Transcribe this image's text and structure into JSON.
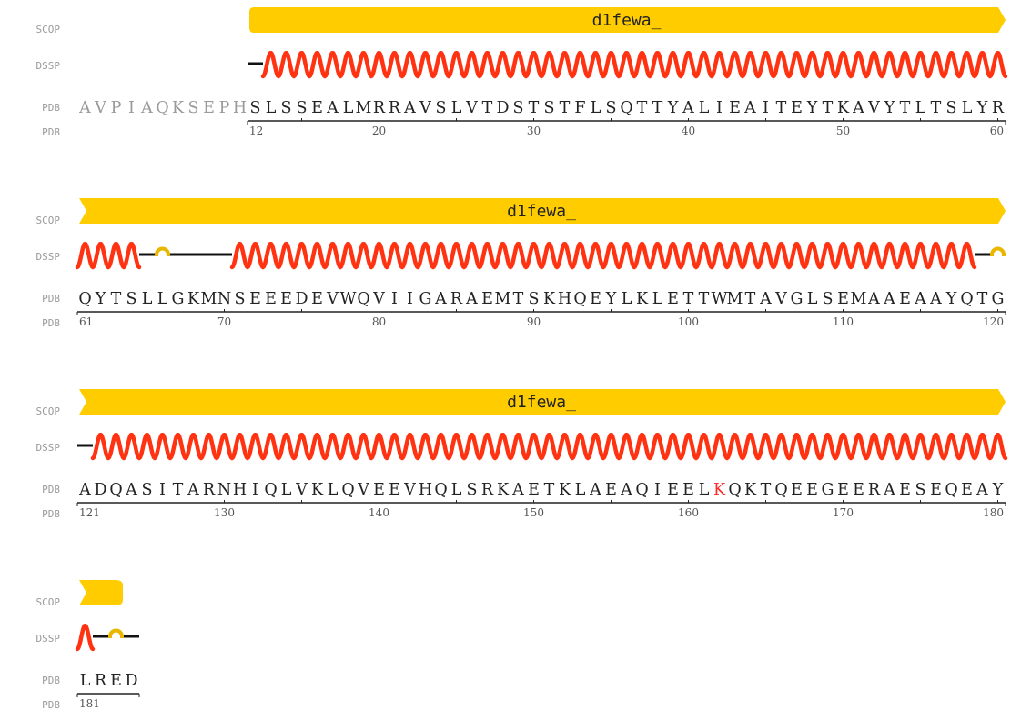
{
  "track_labels": {
    "scop": "SCOP",
    "dssp": "DSSP",
    "pdb": "PDB"
  },
  "colors": {
    "domain_fill": "#FFCC00",
    "helix": "#FF3311",
    "turn": "#E8B800",
    "coil": "#111111",
    "sequence": "#222222",
    "unobserved": "#9A9A9A",
    "highlight": "#FF2A2A"
  },
  "rows": [
    {
      "unobserved": "AVPIAQKSEPH",
      "sequence": "SLSSEALMRRAVSLVTDSTSTFLSQTTYALIEAITEYTKAVYTLTSLYR",
      "highlight_index": -1,
      "domain": {
        "name": "d1fewa_",
        "left_cap": "round",
        "right_cap": "arrow"
      },
      "ticks": [
        "12",
        "20",
        "30",
        "40",
        "50",
        "60"
      ],
      "dssp": [
        {
          "type": "coil",
          "len": 1
        },
        {
          "type": "helix",
          "len": 48
        }
      ]
    },
    {
      "unobserved": "",
      "sequence": "QYTSLLGKMNSEEEDEVWQVIIGARAEMTSKHQEYLKLETTWMTAVGLSEMAAEAAYQTG",
      "highlight_index": -1,
      "domain": {
        "name": "d1fewa_",
        "left_cap": "notch",
        "right_cap": "arrow"
      },
      "ticks": [
        "61",
        "70",
        "80",
        "90",
        "100",
        "110",
        "120"
      ],
      "dssp": [
        {
          "type": "helix",
          "len": 4
        },
        {
          "type": "coil",
          "len": 1
        },
        {
          "type": "turn",
          "len": 1
        },
        {
          "type": "coil",
          "len": 4
        },
        {
          "type": "helix",
          "len": 48
        },
        {
          "type": "coil",
          "len": 1
        },
        {
          "type": "turn",
          "len": 1
        }
      ]
    },
    {
      "unobserved": "",
      "sequence": "ADQASITARNHIQLVKLQVEEVHQLSRKAETKLAEAQIEELKQKTQEEGEERAESEQEAY",
      "highlight_index": 41,
      "domain": {
        "name": "d1fewa_",
        "left_cap": "notch",
        "right_cap": "arrow"
      },
      "ticks": [
        "121",
        "130",
        "140",
        "150",
        "160",
        "170",
        "180"
      ],
      "dssp": [
        {
          "type": "coil",
          "len": 1
        },
        {
          "type": "helix",
          "len": 59
        }
      ]
    },
    {
      "unobserved": "",
      "sequence": "LRED",
      "highlight_index": -1,
      "domain": {
        "name": "",
        "left_cap": "notch",
        "right_cap": "round"
      },
      "ticks": [
        "181"
      ],
      "dssp": [
        {
          "type": "helix",
          "len": 1
        },
        {
          "type": "coil",
          "len": 1
        },
        {
          "type": "turn",
          "len": 1
        },
        {
          "type": "coil",
          "len": 1
        }
      ]
    }
  ]
}
